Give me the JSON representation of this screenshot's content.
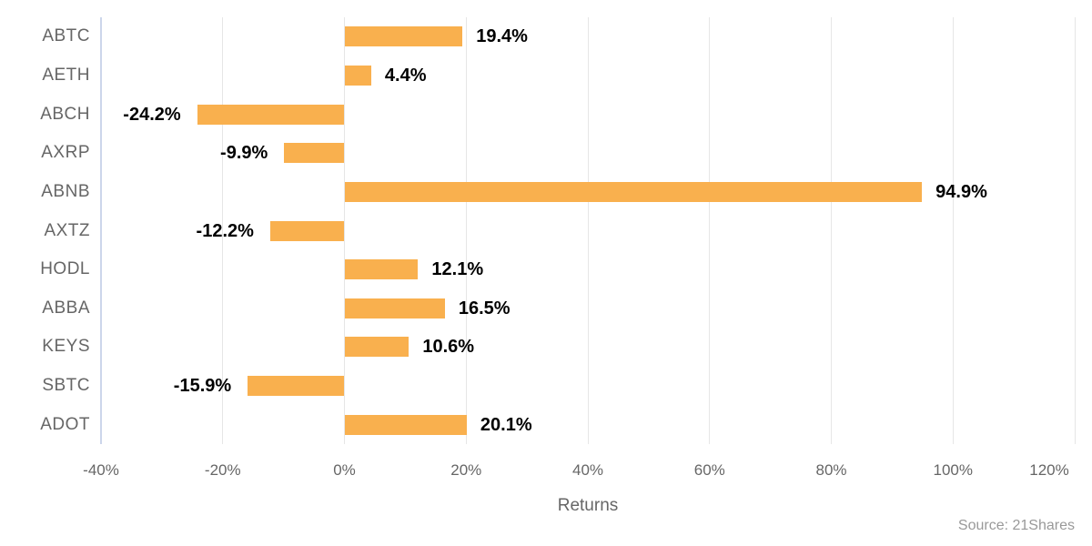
{
  "chart_data": {
    "type": "bar",
    "orientation": "horizontal",
    "title": "",
    "categories": [
      "ABTC",
      "AETH",
      "ABCH",
      "AXRP",
      "ABNB",
      "AXTZ",
      "HODL",
      "ABBA",
      "KEYS",
      "SBTC",
      "ADOT"
    ],
    "values": [
      19.4,
      4.4,
      -24.2,
      -9.9,
      94.9,
      -12.2,
      12.1,
      16.5,
      10.6,
      -15.9,
      20.1
    ],
    "data_labels": [
      "19.4%",
      "4.4%",
      "-24.2%",
      "-9.9%",
      "94.9%",
      "-12.2%",
      "12.1%",
      "16.5%",
      "10.6%",
      "-15.9%",
      "20.1%"
    ],
    "xlabel": "Returns",
    "ylabel": "",
    "xlim": [
      -40,
      120
    ],
    "tick_values": [
      -40,
      -20,
      0,
      20,
      40,
      60,
      80,
      100,
      120
    ],
    "tick_labels": [
      "-40%",
      "-20%",
      "0%",
      "20%",
      "40%",
      "60%",
      "80%",
      "100%",
      "120%"
    ],
    "grid": true,
    "legend_position": "none",
    "source": "Source: 21Shares",
    "colors": {
      "bar": "#F9B04E",
      "axis_line": "#CCD6EB",
      "gridline": "#E6E6E6",
      "category_label": "#666666",
      "tick_label": "#666666",
      "axis_title": "#666666",
      "data_label": "#000000",
      "source_text": "#999999",
      "background": "#FFFFFF"
    }
  }
}
